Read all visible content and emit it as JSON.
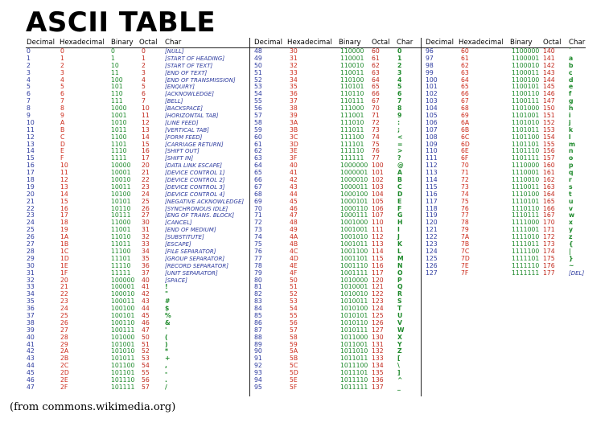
{
  "title": "ASCII TABLE",
  "headers": [
    "Decimal",
    "Hexadecimal",
    "Binary",
    "Octal",
    "Char"
  ],
  "columns": [
    [
      [
        "0",
        "0",
        "0",
        "0",
        "[NULL]"
      ],
      [
        "1",
        "1",
        "1",
        "1",
        "[START OF HEADING]"
      ],
      [
        "2",
        "2",
        "10",
        "2",
        "[START OF TEXT]"
      ],
      [
        "3",
        "3",
        "11",
        "3",
        "[END OF TEXT]"
      ],
      [
        "4",
        "4",
        "100",
        "4",
        "[END OF TRANSMISSION]"
      ],
      [
        "5",
        "5",
        "101",
        "5",
        "[ENQUIRY]"
      ],
      [
        "6",
        "6",
        "110",
        "6",
        "[ACKNOWLEDGE]"
      ],
      [
        "7",
        "7",
        "111",
        "7",
        "[BELL]"
      ],
      [
        "8",
        "8",
        "1000",
        "10",
        "[BACKSPACE]"
      ],
      [
        "9",
        "9",
        "1001",
        "11",
        "[HORIZONTAL TAB]"
      ],
      [
        "10",
        "A",
        "1010",
        "12",
        "[LINE FEED]"
      ],
      [
        "11",
        "B",
        "1011",
        "13",
        "[VERTICAL TAB]"
      ],
      [
        "12",
        "C",
        "1100",
        "14",
        "[FORM FEED]"
      ],
      [
        "13",
        "D",
        "1101",
        "15",
        "[CARRIAGE RETURN]"
      ],
      [
        "14",
        "E",
        "1110",
        "16",
        "[SHIFT OUT]"
      ],
      [
        "15",
        "F",
        "1111",
        "17",
        "[SHIFT IN]"
      ],
      [
        "16",
        "10",
        "10000",
        "20",
        "[DATA LINK ESCAPE]"
      ],
      [
        "17",
        "11",
        "10001",
        "21",
        "[DEVICE CONTROL 1]"
      ],
      [
        "18",
        "12",
        "10010",
        "22",
        "[DEVICE CONTROL 2]"
      ],
      [
        "19",
        "13",
        "10011",
        "23",
        "[DEVICE CONTROL 3]"
      ],
      [
        "20",
        "14",
        "10100",
        "24",
        "[DEVICE CONTROL 4]"
      ],
      [
        "21",
        "15",
        "10101",
        "25",
        "[NEGATIVE ACKNOWLEDGE]"
      ],
      [
        "22",
        "16",
        "10110",
        "26",
        "[SYNCHRONOUS IDLE]"
      ],
      [
        "23",
        "17",
        "10111",
        "27",
        "[ENG OF TRANS. BLOCK]"
      ],
      [
        "24",
        "18",
        "11000",
        "30",
        "[CANCEL]"
      ],
      [
        "25",
        "19",
        "11001",
        "31",
        "[END OF MEDIUM]"
      ],
      [
        "26",
        "1A",
        "11010",
        "32",
        "[SUBSTITUTE]"
      ],
      [
        "27",
        "1B",
        "11011",
        "33",
        "[ESCAPE]"
      ],
      [
        "28",
        "1C",
        "11100",
        "34",
        "[FILE SEPARATOR]"
      ],
      [
        "29",
        "1D",
        "11101",
        "35",
        "[GROUP SEPARATOR]"
      ],
      [
        "30",
        "1E",
        "11110",
        "36",
        "[RECORD SEPARATOR]"
      ],
      [
        "31",
        "1F",
        "11111",
        "37",
        "[UNIT SEPARATOR]"
      ],
      [
        "32",
        "20",
        "100000",
        "40",
        "[SPACE]"
      ],
      [
        "33",
        "21",
        "100001",
        "41",
        "!"
      ],
      [
        "34",
        "22",
        "100010",
        "42",
        "\""
      ],
      [
        "35",
        "23",
        "100011",
        "43",
        "#"
      ],
      [
        "36",
        "24",
        "100100",
        "44",
        "$"
      ],
      [
        "37",
        "25",
        "100101",
        "45",
        "%"
      ],
      [
        "38",
        "26",
        "100110",
        "46",
        "&"
      ],
      [
        "39",
        "27",
        "100111",
        "47",
        "'"
      ],
      [
        "40",
        "28",
        "101000",
        "50",
        "("
      ],
      [
        "41",
        "29",
        "101001",
        "51",
        ")"
      ],
      [
        "42",
        "2A",
        "101010",
        "52",
        "*"
      ],
      [
        "43",
        "2B",
        "101011",
        "53",
        "+"
      ],
      [
        "44",
        "2C",
        "101100",
        "54",
        ","
      ],
      [
        "45",
        "2D",
        "101101",
        "55",
        "-"
      ],
      [
        "46",
        "2E",
        "101110",
        "56",
        "."
      ],
      [
        "47",
        "2F",
        "101111",
        "57",
        "/"
      ]
    ],
    [
      [
        "48",
        "30",
        "110000",
        "60",
        "0"
      ],
      [
        "49",
        "31",
        "110001",
        "61",
        "1"
      ],
      [
        "50",
        "32",
        "110010",
        "62",
        "2"
      ],
      [
        "51",
        "33",
        "110011",
        "63",
        "3"
      ],
      [
        "52",
        "34",
        "110100",
        "64",
        "4"
      ],
      [
        "53",
        "35",
        "110101",
        "65",
        "5"
      ],
      [
        "54",
        "36",
        "110110",
        "66",
        "6"
      ],
      [
        "55",
        "37",
        "110111",
        "67",
        "7"
      ],
      [
        "56",
        "38",
        "111000",
        "70",
        "8"
      ],
      [
        "57",
        "39",
        "111001",
        "71",
        "9"
      ],
      [
        "58",
        "3A",
        "111010",
        "72",
        ":"
      ],
      [
        "59",
        "3B",
        "111011",
        "73",
        ";"
      ],
      [
        "60",
        "3C",
        "111100",
        "74",
        "<"
      ],
      [
        "61",
        "3D",
        "111101",
        "75",
        "="
      ],
      [
        "62",
        "3E",
        "111110",
        "76",
        ">"
      ],
      [
        "63",
        "3F",
        "111111",
        "77",
        "?"
      ],
      [
        "64",
        "40",
        "1000000",
        "100",
        "@"
      ],
      [
        "65",
        "41",
        "1000001",
        "101",
        "A"
      ],
      [
        "66",
        "42",
        "1000010",
        "102",
        "B"
      ],
      [
        "67",
        "43",
        "1000011",
        "103",
        "C"
      ],
      [
        "68",
        "44",
        "1000100",
        "104",
        "D"
      ],
      [
        "69",
        "45",
        "1000101",
        "105",
        "E"
      ],
      [
        "70",
        "46",
        "1000110",
        "106",
        "F"
      ],
      [
        "71",
        "47",
        "1000111",
        "107",
        "G"
      ],
      [
        "72",
        "48",
        "1001000",
        "110",
        "H"
      ],
      [
        "73",
        "49",
        "1001001",
        "111",
        "I"
      ],
      [
        "74",
        "4A",
        "1001010",
        "112",
        "J"
      ],
      [
        "75",
        "4B",
        "1001011",
        "113",
        "K"
      ],
      [
        "76",
        "4C",
        "1001100",
        "114",
        "L"
      ],
      [
        "77",
        "4D",
        "1001101",
        "115",
        "M"
      ],
      [
        "78",
        "4E",
        "1001110",
        "116",
        "N"
      ],
      [
        "79",
        "4F",
        "1001111",
        "117",
        "O"
      ],
      [
        "80",
        "50",
        "1010000",
        "120",
        "P"
      ],
      [
        "81",
        "51",
        "1010001",
        "121",
        "Q"
      ],
      [
        "82",
        "52",
        "1010010",
        "122",
        "R"
      ],
      [
        "83",
        "53",
        "1010011",
        "123",
        "S"
      ],
      [
        "84",
        "54",
        "1010100",
        "124",
        "T"
      ],
      [
        "85",
        "55",
        "1010101",
        "125",
        "U"
      ],
      [
        "86",
        "56",
        "1010110",
        "126",
        "V"
      ],
      [
        "87",
        "57",
        "1010111",
        "127",
        "W"
      ],
      [
        "88",
        "58",
        "1011000",
        "130",
        "X"
      ],
      [
        "89",
        "59",
        "1011001",
        "131",
        "Y"
      ],
      [
        "90",
        "5A",
        "1011010",
        "132",
        "Z"
      ],
      [
        "91",
        "5B",
        "1011011",
        "133",
        "["
      ],
      [
        "92",
        "5C",
        "1011100",
        "134",
        "\\"
      ],
      [
        "93",
        "5D",
        "1011101",
        "135",
        "]"
      ],
      [
        "94",
        "5E",
        "1011110",
        "136",
        "^"
      ],
      [
        "95",
        "5F",
        "1011111",
        "137",
        "_"
      ]
    ],
    [
      [
        "96",
        "60",
        "1100000",
        "140",
        "`"
      ],
      [
        "97",
        "61",
        "1100001",
        "141",
        "a"
      ],
      [
        "98",
        "62",
        "1100010",
        "142",
        "b"
      ],
      [
        "99",
        "63",
        "1100011",
        "143",
        "c"
      ],
      [
        "100",
        "64",
        "1100100",
        "144",
        "d"
      ],
      [
        "101",
        "65",
        "1100101",
        "145",
        "e"
      ],
      [
        "102",
        "66",
        "1100110",
        "146",
        "f"
      ],
      [
        "103",
        "67",
        "1100111",
        "147",
        "g"
      ],
      [
        "104",
        "68",
        "1101000",
        "150",
        "h"
      ],
      [
        "105",
        "69",
        "1101001",
        "151",
        "i"
      ],
      [
        "106",
        "6A",
        "1101010",
        "152",
        "j"
      ],
      [
        "107",
        "6B",
        "1101011",
        "153",
        "k"
      ],
      [
        "108",
        "6C",
        "1101100",
        "154",
        "l"
      ],
      [
        "109",
        "6D",
        "1101101",
        "155",
        "m"
      ],
      [
        "110",
        "6E",
        "1101110",
        "156",
        "n"
      ],
      [
        "111",
        "6F",
        "1101111",
        "157",
        "o"
      ],
      [
        "112",
        "70",
        "1110000",
        "160",
        "p"
      ],
      [
        "113",
        "71",
        "1110001",
        "161",
        "q"
      ],
      [
        "114",
        "72",
        "1110010",
        "162",
        "r"
      ],
      [
        "115",
        "73",
        "1110011",
        "163",
        "s"
      ],
      [
        "116",
        "74",
        "1110100",
        "164",
        "t"
      ],
      [
        "117",
        "75",
        "1110101",
        "165",
        "u"
      ],
      [
        "118",
        "76",
        "1110110",
        "166",
        "v"
      ],
      [
        "119",
        "77",
        "1110111",
        "167",
        "w"
      ],
      [
        "120",
        "78",
        "1111000",
        "170",
        "x"
      ],
      [
        "121",
        "79",
        "1111001",
        "171",
        "y"
      ],
      [
        "122",
        "7A",
        "1111010",
        "172",
        "z"
      ],
      [
        "123",
        "7B",
        "1111011",
        "173",
        "{"
      ],
      [
        "124",
        "7C",
        "1111100",
        "174",
        "|"
      ],
      [
        "125",
        "7D",
        "1111101",
        "175",
        "}"
      ],
      [
        "126",
        "7E",
        "1111110",
        "176",
        "~"
      ],
      [
        "127",
        "7F",
        "1111111",
        "177",
        "[DEL]"
      ]
    ]
  ],
  "footnote": "(from commons.wikimedia.org)",
  "colors": {
    "decimal": "#2c3a9e",
    "hexadecimal": "#cc2a1a",
    "binary": "#1f8a2c",
    "octal": "#c0261a",
    "char_control": "#2c3a9e",
    "char_printable": "#1f8a2c"
  }
}
